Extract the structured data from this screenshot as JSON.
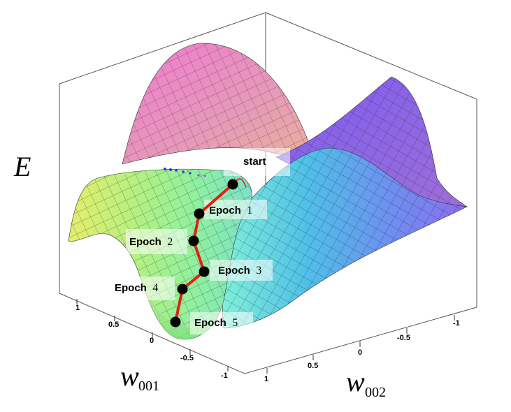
{
  "axes": {
    "z_label": "E",
    "x_label_main": "w",
    "x_label_sub": "001",
    "y_label_main": "w",
    "y_label_sub": "002"
  },
  "ticks_left": [
    "1",
    "0.5",
    "0",
    "-0.5",
    "-1"
  ],
  "ticks_right": [
    "1",
    "0.5",
    "0",
    "-0.5",
    "-1"
  ],
  "path_points": [
    {
      "name": "start",
      "word": "start",
      "num": ""
    },
    {
      "name": "epoch-1",
      "word": "Epoch",
      "num": "1"
    },
    {
      "name": "epoch-2",
      "word": "Epoch",
      "num": "2"
    },
    {
      "name": "epoch-3",
      "word": "Epoch",
      "num": "3"
    },
    {
      "name": "epoch-4",
      "word": "Epoch",
      "num": "4"
    },
    {
      "name": "epoch-5",
      "word": "Epoch",
      "num": "5"
    }
  ],
  "colors": {
    "path": "#e02010",
    "point": "#000000",
    "box": "#555555",
    "mesh": "#1a1a1a"
  }
}
